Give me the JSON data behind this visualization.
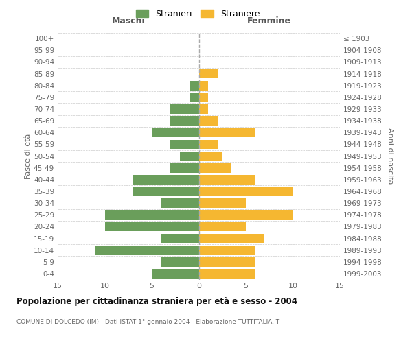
{
  "age_groups": [
    "0-4",
    "5-9",
    "10-14",
    "15-19",
    "20-24",
    "25-29",
    "30-34",
    "35-39",
    "40-44",
    "45-49",
    "50-54",
    "55-59",
    "60-64",
    "65-69",
    "70-74",
    "75-79",
    "80-84",
    "85-89",
    "90-94",
    "95-99",
    "100+"
  ],
  "birth_years": [
    "1999-2003",
    "1994-1998",
    "1989-1993",
    "1984-1988",
    "1979-1983",
    "1974-1978",
    "1969-1973",
    "1964-1968",
    "1959-1963",
    "1954-1958",
    "1949-1953",
    "1944-1948",
    "1939-1943",
    "1934-1938",
    "1929-1933",
    "1924-1928",
    "1919-1923",
    "1914-1918",
    "1909-1913",
    "1904-1908",
    "≤ 1903"
  ],
  "males": [
    5,
    4,
    11,
    4,
    10,
    10,
    4,
    7,
    7,
    3,
    2,
    3,
    5,
    3,
    3,
    1,
    1,
    0,
    0,
    0,
    0
  ],
  "females": [
    6,
    6,
    6,
    7,
    5,
    10,
    5,
    10,
    6,
    3.5,
    2.5,
    2,
    6,
    2,
    1,
    1,
    1,
    2,
    0,
    0,
    0
  ],
  "male_color": "#6a9e5b",
  "female_color": "#f5b731",
  "title": "Popolazione per cittadinanza straniera per età e sesso - 2004",
  "subtitle": "COMUNE DI DOLCEDO (IM) - Dati ISTAT 1° gennaio 2004 - Elaborazione TUTTITALIA.IT",
  "ylabel_left": "Fasce di età",
  "ylabel_right": "Anni di nascita",
  "xlabel_left": "Maschi",
  "xlabel_right": "Femmine",
  "legend_male": "Stranieri",
  "legend_female": "Straniere",
  "xlim": 15,
  "background_color": "#ffffff",
  "grid_color": "#cccccc"
}
